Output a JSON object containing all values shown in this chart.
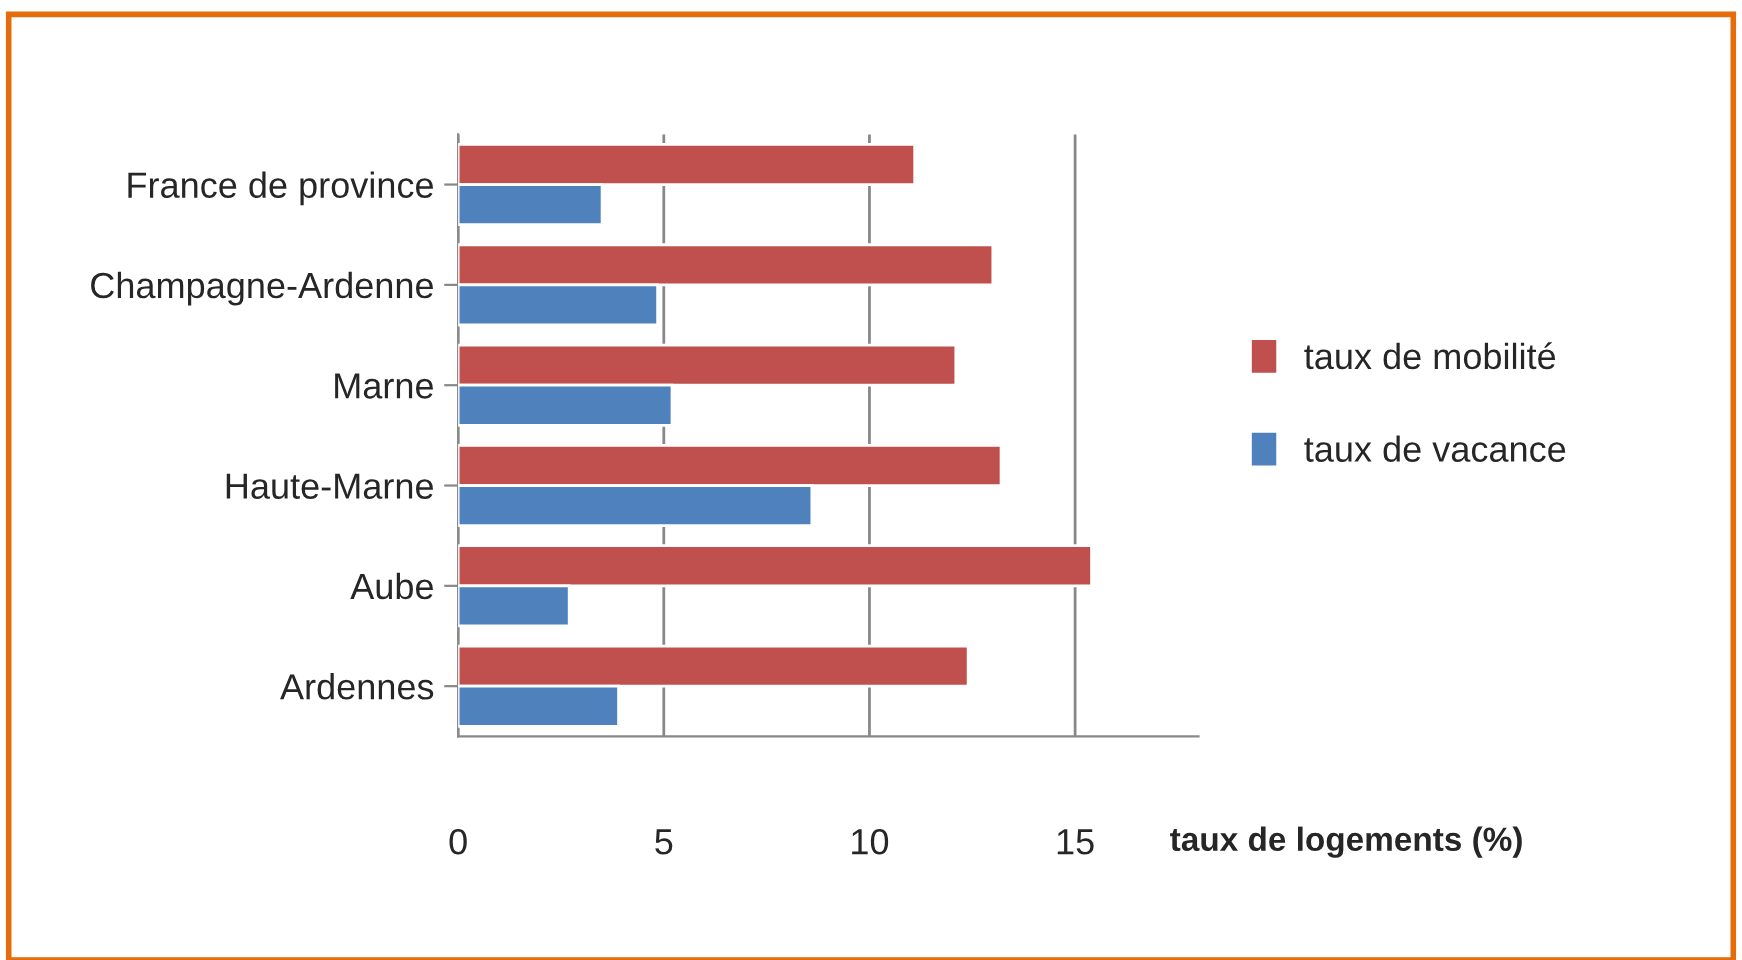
{
  "chart_data": {
    "type": "bar",
    "orientation": "horizontal",
    "xlabel": "taux de logements (%)",
    "categories": [
      "France de province",
      "Champagne-Ardenne",
      "Marne",
      "Haute-Marne",
      "Aube",
      "Ardennes"
    ],
    "series": [
      {
        "name": "taux de mobilité",
        "color": "#c0504d",
        "values": [
          11.1,
          13.0,
          12.1,
          13.2,
          15.4,
          12.4
        ]
      },
      {
        "name": "taux de vacance",
        "color": "#4f81bd",
        "values": [
          3.5,
          4.85,
          5.2,
          8.6,
          2.7,
          3.9
        ]
      }
    ],
    "xlim": [
      0,
      18
    ],
    "xticks": [
      0,
      5,
      10,
      15
    ],
    "grid": "x",
    "legend": "right"
  }
}
